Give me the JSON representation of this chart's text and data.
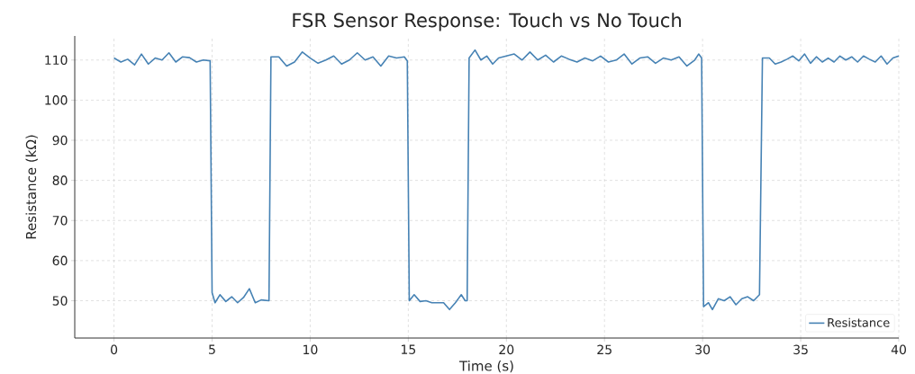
{
  "chart_data": {
    "type": "line",
    "title": "FSR Sensor Response: Touch vs No Touch",
    "xlabel": "Time (s)",
    "ylabel": "Resistance (kΩ)",
    "xlim": [
      -2,
      40
    ],
    "ylim": [
      40.7,
      116
    ],
    "xticks": [
      0,
      5,
      10,
      15,
      20,
      25,
      30,
      35,
      40
    ],
    "yticks": [
      50,
      60,
      70,
      80,
      90,
      100,
      110
    ],
    "grid": true,
    "legend": "bottom right",
    "line_style": "solid",
    "marker": "none",
    "series": [
      {
        "name": "Resistance",
        "color": "#4682b4",
        "x": [
          0,
          0.35,
          0.7,
          1.05,
          1.4,
          1.75,
          2.1,
          2.45,
          2.8,
          3.15,
          3.5,
          3.85,
          4.2,
          4.55,
          4.9,
          5.0,
          5.15,
          5.4,
          5.7,
          6.0,
          6.3,
          6.6,
          6.9,
          7.2,
          7.5,
          7.9,
          8.0,
          8.4,
          8.8,
          9.2,
          9.6,
          10.0,
          10.4,
          10.8,
          11.2,
          11.6,
          12.0,
          12.4,
          12.8,
          13.2,
          13.6,
          14.0,
          14.4,
          14.8,
          14.95,
          15.05,
          15.3,
          15.6,
          15.9,
          16.2,
          16.5,
          16.8,
          17.1,
          17.4,
          17.7,
          17.9,
          18.0,
          18.1,
          18.4,
          18.7,
          19.0,
          19.3,
          19.6,
          20.0,
          20.4,
          20.8,
          21.2,
          21.6,
          22.0,
          22.4,
          22.8,
          23.2,
          23.6,
          24.0,
          24.4,
          24.8,
          25.2,
          25.6,
          26.0,
          26.4,
          26.8,
          27.2,
          27.6,
          28.0,
          28.4,
          28.8,
          29.2,
          29.6,
          29.8,
          29.95,
          30.05,
          30.3,
          30.5,
          30.8,
          31.1,
          31.4,
          31.7,
          32.0,
          32.3,
          32.6,
          32.9,
          33.05,
          33.4,
          33.7,
          34.0,
          34.3,
          34.6,
          34.9,
          35.2,
          35.5,
          35.8,
          36.1,
          36.4,
          36.7,
          37.0,
          37.3,
          37.6,
          37.9,
          38.2,
          38.5,
          38.8,
          39.1,
          39.4,
          39.7,
          40.0
        ],
        "values": [
          110.5,
          109.5,
          110.2,
          108.8,
          111.5,
          109,
          110.5,
          110,
          111.8,
          109.5,
          110.8,
          110.6,
          109.5,
          110,
          109.8,
          52,
          49.5,
          51.5,
          49.8,
          51,
          49.5,
          50.8,
          53,
          49.5,
          50.2,
          50,
          110.8,
          110.8,
          108.5,
          109.5,
          112,
          110.5,
          109.2,
          110,
          111,
          109,
          110,
          111.8,
          110,
          110.8,
          108.5,
          111,
          110.5,
          110.8,
          109.8,
          50,
          51.5,
          49.8,
          50,
          49.5,
          49.5,
          49.5,
          47.8,
          49.5,
          51.5,
          50,
          50,
          110.5,
          112.5,
          110,
          111,
          109,
          110.5,
          111,
          111.5,
          110,
          112,
          110,
          111.2,
          109.5,
          111,
          110.2,
          109.5,
          110.5,
          109.8,
          111,
          109.5,
          110,
          111.5,
          109,
          110.5,
          110.8,
          109.2,
          110.5,
          110,
          110.8,
          108.5,
          110,
          111.5,
          110.5,
          48.5,
          49.5,
          47.8,
          50.5,
          50,
          51,
          49,
          50.5,
          51,
          50,
          51.5,
          110.5,
          110.5,
          109,
          109.5,
          110.2,
          111,
          109.8,
          111.5,
          109.2,
          110.8,
          109.5,
          110.5,
          109.5,
          111,
          110,
          110.8,
          109.5,
          111,
          110.2,
          109.5,
          111,
          109,
          110.5,
          111
        ]
      }
    ]
  }
}
